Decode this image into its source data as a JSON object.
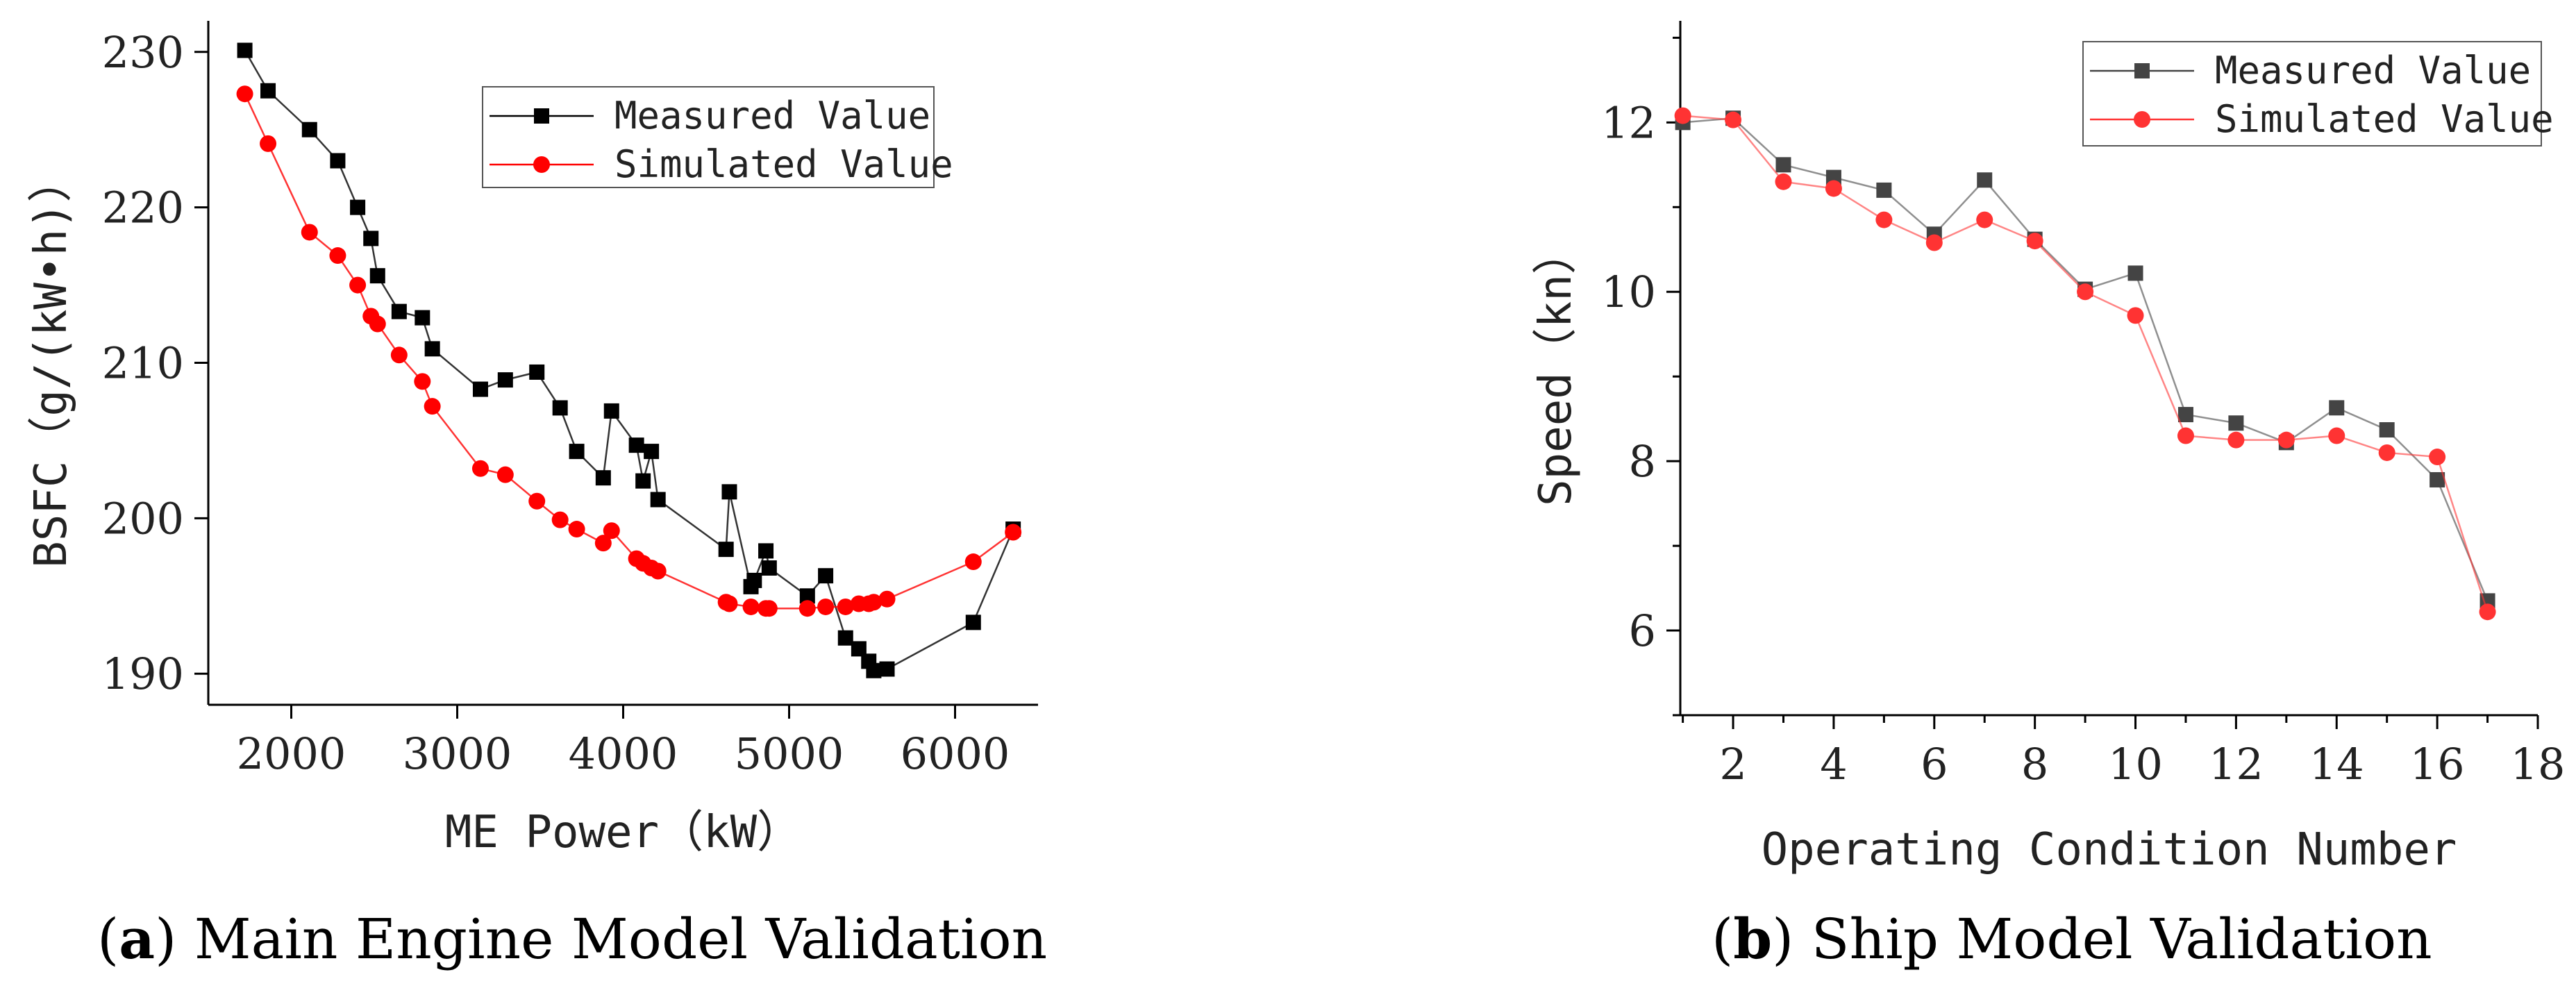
{
  "chart_data": [
    {
      "type": "line",
      "caption_letter": "a",
      "caption_text": ") Main Engine Model Validation",
      "xlabel": "ME Power（kW）",
      "ylabel": "BSFC（g/(kW•h)）",
      "xlim": [
        1500,
        6500
      ],
      "ylim": [
        188,
        232
      ],
      "xticks": [
        2000,
        3000,
        4000,
        5000,
        6000
      ],
      "yticks": [
        190,
        200,
        210,
        220,
        230
      ],
      "legend_position": "top-right",
      "series": [
        {
          "name": "Measured Value",
          "color": "#000000",
          "marker": "square",
          "points": [
            [
              1720,
              230.1
            ],
            [
              1860,
              227.5
            ],
            [
              2110,
              225.0
            ],
            [
              2280,
              223.0
            ],
            [
              2400,
              220.0
            ],
            [
              2480,
              218.0
            ],
            [
              2520,
              215.6
            ],
            [
              2650,
              213.3
            ],
            [
              2790,
              212.9
            ],
            [
              2850,
              210.9
            ],
            [
              3140,
              208.3
            ],
            [
              3290,
              208.9
            ],
            [
              3480,
              209.4
            ],
            [
              3620,
              207.1
            ],
            [
              3720,
              204.3
            ],
            [
              3880,
              202.6
            ],
            [
              3930,
              206.9
            ],
            [
              4080,
              204.7
            ],
            [
              4120,
              202.4
            ],
            [
              4170,
              204.3
            ],
            [
              4210,
              201.2
            ],
            [
              4620,
              198.0
            ],
            [
              4640,
              201.7
            ],
            [
              4770,
              195.6
            ],
            [
              4790,
              196.0
            ],
            [
              4860,
              197.9
            ],
            [
              4880,
              196.8
            ],
            [
              5110,
              195.0
            ],
            [
              5220,
              196.3
            ],
            [
              5340,
              192.3
            ],
            [
              5420,
              191.6
            ],
            [
              5480,
              190.8
            ],
            [
              5510,
              190.2
            ],
            [
              5590,
              190.3
            ],
            [
              6110,
              193.3
            ],
            [
              6350,
              199.3
            ]
          ]
        },
        {
          "name": "Simulated Value",
          "color": "#ff0000",
          "marker": "circle",
          "points": [
            [
              1720,
              227.3
            ],
            [
              1860,
              224.1
            ],
            [
              2110,
              218.4
            ],
            [
              2280,
              216.9
            ],
            [
              2400,
              215.0
            ],
            [
              2480,
              213.0
            ],
            [
              2520,
              212.5
            ],
            [
              2650,
              210.5
            ],
            [
              2790,
              208.8
            ],
            [
              2850,
              207.2
            ],
            [
              3140,
              203.2
            ],
            [
              3290,
              202.8
            ],
            [
              3480,
              201.1
            ],
            [
              3620,
              199.9
            ],
            [
              3720,
              199.3
            ],
            [
              3880,
              198.4
            ],
            [
              3930,
              199.2
            ],
            [
              4080,
              197.4
            ],
            [
              4120,
              197.1
            ],
            [
              4170,
              196.8
            ],
            [
              4210,
              196.6
            ],
            [
              4620,
              194.6
            ],
            [
              4640,
              194.5
            ],
            [
              4770,
              194.3
            ],
            [
              4860,
              194.2
            ],
            [
              4880,
              194.2
            ],
            [
              5110,
              194.2
            ],
            [
              5220,
              194.3
            ],
            [
              5340,
              194.3
            ],
            [
              5420,
              194.5
            ],
            [
              5480,
              194.5
            ],
            [
              5510,
              194.6
            ],
            [
              5590,
              194.8
            ],
            [
              6110,
              197.2
            ],
            [
              6350,
              199.1
            ]
          ]
        }
      ]
    },
    {
      "type": "line",
      "caption_letter": "b",
      "caption_text": ") Ship Model Validation",
      "xlabel": "Operating Condition Number",
      "ylabel": "Speed（kn）",
      "xlim": [
        0.95,
        18
      ],
      "ylim": [
        5,
        13.2
      ],
      "xticks": [
        2,
        4,
        6,
        8,
        10,
        12,
        14,
        16,
        18
      ],
      "yticks": [
        6,
        8,
        10,
        12
      ],
      "legend_position": "top-right",
      "series": [
        {
          "name": "Measured Value",
          "color": "#444444",
          "marker": "square",
          "points": [
            [
              1,
              12.0
            ],
            [
              2,
              12.05
            ],
            [
              3,
              11.5
            ],
            [
              4,
              11.35
            ],
            [
              5,
              11.2
            ],
            [
              6,
              10.68
            ],
            [
              7,
              11.32
            ],
            [
              8,
              10.62
            ],
            [
              9,
              10.03
            ],
            [
              10,
              10.22
            ],
            [
              11,
              8.55
            ],
            [
              12,
              8.45
            ],
            [
              13,
              8.22
            ],
            [
              14,
              8.63
            ],
            [
              15,
              8.37
            ],
            [
              16,
              7.78
            ],
            [
              17,
              6.35
            ]
          ]
        },
        {
          "name": "Simulated Value",
          "color": "#ff3333",
          "marker": "circle",
          "points": [
            [
              1,
              12.08
            ],
            [
              2,
              12.03
            ],
            [
              3,
              11.3
            ],
            [
              4,
              11.22
            ],
            [
              5,
              10.85
            ],
            [
              6,
              10.58
            ],
            [
              7,
              10.85
            ],
            [
              8,
              10.6
            ],
            [
              9,
              10.0
            ],
            [
              10,
              9.72
            ],
            [
              11,
              8.3
            ],
            [
              12,
              8.25
            ],
            [
              13,
              8.25
            ],
            [
              14,
              8.3
            ],
            [
              15,
              8.1
            ],
            [
              16,
              8.05
            ],
            [
              17,
              6.22
            ]
          ]
        }
      ]
    }
  ]
}
